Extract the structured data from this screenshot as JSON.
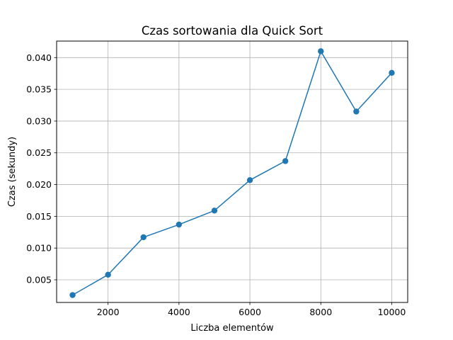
{
  "chart_data": {
    "type": "line",
    "title": "Czas sortowania dla Quick Sort",
    "xlabel": "Liczba elementów",
    "ylabel": "Czas (sekundy)",
    "x": [
      1000,
      2000,
      3000,
      4000,
      5000,
      6000,
      7000,
      8000,
      9000,
      10000
    ],
    "series": [
      {
        "values": [
          0.0026,
          0.0058,
          0.0117,
          0.0137,
          0.0159,
          0.0207,
          0.0237,
          0.041,
          0.0315,
          0.0376
        ],
        "color": "#1f77b4",
        "marker": "circle"
      }
    ],
    "xlim": [
      550,
      10450
    ],
    "ylim": [
      0.00143,
      0.0426
    ],
    "xticks": [
      2000,
      4000,
      6000,
      8000,
      10000
    ],
    "xtick_labels": [
      "2000",
      "4000",
      "6000",
      "8000",
      "10000"
    ],
    "yticks": [
      0.005,
      0.01,
      0.015,
      0.02,
      0.025,
      0.03,
      0.035,
      0.04
    ],
    "ytick_labels": [
      "0.005",
      "0.010",
      "0.015",
      "0.020",
      "0.025",
      "0.030",
      "0.035",
      "0.040"
    ],
    "grid": true,
    "legend": false
  }
}
